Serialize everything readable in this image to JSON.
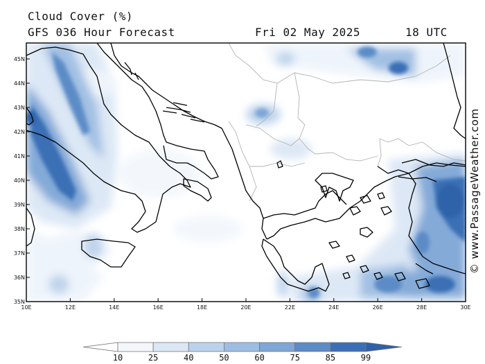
{
  "header": {
    "title": "Cloud Cover (%)",
    "model": "GFS 036 Hour Forecast",
    "date": "Fri 02 May 2025",
    "time": "18 UTC"
  },
  "map": {
    "lat_labels": [
      "45N",
      "44N",
      "43N",
      "42N",
      "41N",
      "40N",
      "39N",
      "38N",
      "37N",
      "36N",
      "35N"
    ],
    "lon_labels": [
      "10E",
      "12E",
      "14E",
      "16E",
      "18E",
      "20E",
      "22E",
      "24E",
      "26E",
      "28E",
      "30E"
    ],
    "colors": {
      "land_outline": "#000000",
      "border": "#b8b8b8",
      "cloud_light": "#eef4fb",
      "cloud_dark": "#2f63a9"
    }
  },
  "legend": {
    "ticks": [
      "10",
      "25",
      "40",
      "50",
      "60",
      "75",
      "85",
      "99"
    ],
    "colors": [
      "#ffffff",
      "#f3f7fc",
      "#dbe7f5",
      "#bcd2ec",
      "#9dbde2",
      "#7ea6d6",
      "#5c8bc6",
      "#3a6fb5",
      "#2f5fa8"
    ]
  },
  "credit": "© www.PassageWeather.com"
}
